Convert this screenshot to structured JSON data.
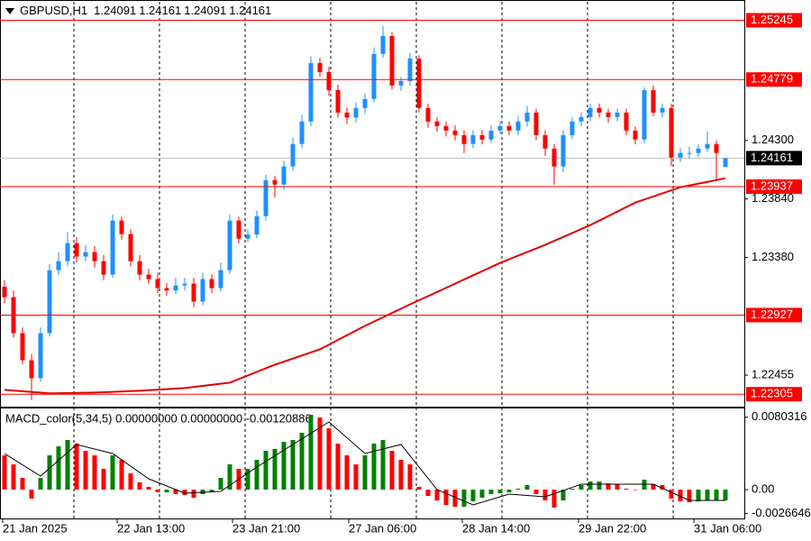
{
  "chart_data": {
    "type": "candlestick",
    "symbol": "GBPUSD,H1",
    "header_ohlc": [
      1.24091,
      1.24161,
      1.24091,
      1.24161
    ],
    "open": [
      1.2315,
      1.23068,
      1.22785,
      1.22572,
      1.22431,
      1.22785,
      1.2328,
      1.23351,
      1.23493,
      1.23387,
      1.23422,
      1.23351,
      1.23245,
      1.2367,
      1.23564,
      1.23351,
      1.23245,
      1.2321,
      1.23139,
      1.2312,
      1.2316,
      1.23174,
      1.23033,
      1.2321,
      1.23139,
      1.2328,
      1.2367,
      1.23528,
      1.2356,
      1.23705,
      1.23988,
      1.23953,
      1.24095,
      1.24272,
      1.24449,
      1.24909,
      1.24838,
      1.24696,
      1.24519,
      1.2448,
      1.24555,
      1.24626,
      1.2498,
      1.25121,
      1.24732,
      1.24767,
      1.24944,
      1.24555,
      1.24449,
      1.24413,
      1.24378,
      1.24342,
      1.24272,
      1.24342,
      1.24307,
      1.24378,
      1.24413,
      1.24378,
      1.24449,
      1.24519,
      1.24342,
      1.24236,
      1.24095,
      1.24342,
      1.24449,
      1.24484,
      1.24555,
      1.24519,
      1.24484,
      1.24519,
      1.24378,
      1.24307,
      1.24696,
      1.24519,
      1.24555,
      1.24165,
      1.24201,
      1.24201,
      1.24236,
      1.24272,
      1.24091
    ],
    "high": [
      1.232,
      1.2312,
      1.2283,
      1.2262,
      1.2283,
      1.2333,
      1.2342,
      1.2358,
      1.2354,
      1.2348,
      1.2347,
      1.234,
      1.2372,
      1.237,
      1.236,
      1.234,
      1.2329,
      1.2326,
      1.2318,
      1.2322,
      1.2322,
      1.2322,
      1.2326,
      1.2325,
      1.2334,
      1.2372,
      1.237,
      1.236,
      1.2375,
      1.2403,
      1.2402,
      1.2414,
      1.2432,
      1.245,
      1.2496,
      1.2495,
      1.2488,
      1.2474,
      1.2456,
      1.246,
      1.2467,
      1.2503,
      1.252,
      1.2515,
      1.248,
      1.2499,
      1.2497,
      1.2459,
      1.2448,
      1.2445,
      1.2442,
      1.2438,
      1.2438,
      1.2438,
      1.2442,
      1.2445,
      1.2445,
      1.2449,
      1.2457,
      1.2455,
      1.2438,
      1.2427,
      1.2438,
      1.2448,
      1.2452,
      1.2459,
      1.2459,
      1.2455,
      1.2455,
      1.2455,
      1.2441,
      1.2472,
      1.2473,
      1.2459,
      1.2459,
      1.2424,
      1.2425,
      1.2427,
      1.2437,
      1.243,
      1.24161
    ],
    "low": [
      1.2302,
      1.2275,
      1.2254,
      1.2226,
      1.224,
      1.2276,
      1.2324,
      1.2331,
      1.2334,
      1.2335,
      1.233,
      1.232,
      1.2322,
      1.2352,
      1.2331,
      1.232,
      1.2317,
      1.231,
      1.2308,
      1.2309,
      1.2312,
      1.2299,
      1.23,
      1.231,
      1.2311,
      1.2325,
      1.2349,
      1.235,
      1.2353,
      1.2367,
      1.2385,
      1.2391,
      1.2406,
      1.2424,
      1.2441,
      1.248,
      1.2465,
      1.2448,
      1.2443,
      1.2444,
      1.2451,
      1.246,
      1.2495,
      1.247,
      1.2469,
      1.2473,
      1.2452,
      1.244,
      1.2437,
      1.2433,
      1.243,
      1.242,
      1.2424,
      1.2427,
      1.2428,
      1.2435,
      1.2434,
      1.2434,
      1.2441,
      1.243,
      1.2418,
      1.2395,
      1.2405,
      1.2431,
      1.2441,
      1.2445,
      1.2448,
      1.2444,
      1.2445,
      1.2434,
      1.2427,
      1.2428,
      1.2449,
      1.2448,
      1.241,
      1.2413,
      1.2416,
      1.2417,
      1.2421,
      1.2398,
      1.24091
    ],
    "close": [
      1.23068,
      1.22785,
      1.22572,
      1.22431,
      1.22785,
      1.2328,
      1.23351,
      1.23493,
      1.23387,
      1.23422,
      1.23351,
      1.23245,
      1.2367,
      1.23564,
      1.23351,
      1.23245,
      1.2321,
      1.23139,
      1.2312,
      1.2316,
      1.23174,
      1.23033,
      1.2321,
      1.23139,
      1.2328,
      1.2367,
      1.23528,
      1.2356,
      1.23705,
      1.23988,
      1.23953,
      1.24095,
      1.24272,
      1.24449,
      1.24909,
      1.24838,
      1.24696,
      1.24519,
      1.2448,
      1.24555,
      1.24626,
      1.2498,
      1.25121,
      1.24732,
      1.24767,
      1.24944,
      1.24555,
      1.24449,
      1.24413,
      1.24378,
      1.24342,
      1.24272,
      1.24342,
      1.24307,
      1.24378,
      1.24413,
      1.24378,
      1.24449,
      1.24519,
      1.24342,
      1.24236,
      1.24095,
      1.24342,
      1.24449,
      1.24484,
      1.24555,
      1.24519,
      1.24484,
      1.24519,
      1.24378,
      1.24307,
      1.24696,
      1.24519,
      1.24555,
      1.24165,
      1.24201,
      1.24201,
      1.24236,
      1.24272,
      1.24201,
      1.24161
    ],
    "up_color": "#1e90ff",
    "down_color": "#ff0000",
    "xlim": [
      -0.5,
      80.5
    ],
    "xticks": [
      {
        "value": -0.2,
        "label": "21 Jan 2025"
      },
      {
        "value": 12.5,
        "label": "22 Jan 13:00"
      },
      {
        "value": 25.3,
        "label": "23 Jan 21:00"
      },
      {
        "value": 38.2,
        "label": "27 Jan 06:00"
      },
      {
        "value": 50.8,
        "label": "28 Jan 14:00"
      },
      {
        "value": 63.7,
        "label": "29 Jan 22:00"
      },
      {
        "value": 76.5,
        "label": "31 Jan 06:00"
      }
    ],
    "ylim": [
      1.222,
      1.2539
    ],
    "yticks": [
      {
        "value": 1.243,
        "label": "1.24300"
      },
      {
        "value": 1.2384,
        "label": "1.23840"
      },
      {
        "value": 1.2338,
        "label": "1.23380"
      },
      1.22455
    ],
    "levels": [
      1.25245,
      1.24779,
      1.23937,
      1.22927,
      1.22305
    ],
    "level_color": "#ff0000",
    "current_price": 1.24161,
    "moving_average": {
      "color": "#e00000",
      "x": [
        0,
        5,
        10,
        15,
        20,
        25,
        30,
        35,
        40,
        45,
        50,
        55,
        60,
        65,
        70,
        75,
        80
      ],
      "values": [
        1.22339,
        1.22311,
        1.22318,
        1.22332,
        1.22353,
        1.22396,
        1.22537,
        1.22657,
        1.22842,
        1.23011,
        1.23174,
        1.23337,
        1.23479,
        1.23634,
        1.23811,
        1.23932,
        1.24003
      ]
    },
    "macd": {
      "title": "MACD_color(5,34,5) 0.00000000 0.00000000 -0.00120886",
      "histogram": [
        0.0038,
        0.0028,
        0.0013,
        -0.001,
        0.0013,
        0.0038,
        0.0048,
        0.0055,
        0.0051,
        0.0043,
        0.0038,
        0.0023,
        0.0038,
        0.0033,
        0.0018,
        0.0008,
        0.0003,
        -0.0003,
        -0.0003,
        -0.0005,
        -0.0006,
        -0.0009,
        -0.0005,
        -0.0002,
        0.0013,
        0.0028,
        0.0023,
        0.0023,
        0.0033,
        0.0043,
        0.0045,
        0.0053,
        0.0055,
        0.0063,
        0.0083,
        0.008,
        0.0068,
        0.0051,
        0.0038,
        0.0028,
        0.0038,
        0.0051,
        0.0055,
        0.0043,
        0.0033,
        0.0028,
        0.0003,
        -0.0007,
        -0.0012,
        -0.0017,
        -0.0019,
        -0.0019,
        -0.0013,
        -0.0009,
        -0.0005,
        -0.0004,
        -0.0003,
        0.0001,
        0.0005,
        -0.0005,
        -0.0012,
        -0.002,
        -0.0012,
        0.0001,
        0.0005,
        0.0009,
        0.0009,
        0.0007,
        0.0006,
        0.0001,
        0,
        0.0011,
        0.0006,
        0.0005,
        -0.001,
        -0.0013,
        -0.0014,
        -0.0013,
        -0.0012,
        -0.0012,
        -0.0012
      ],
      "signal_x": [
        0,
        4,
        8,
        12,
        16,
        20,
        24,
        28,
        32,
        36,
        40,
        44,
        48,
        52,
        56,
        60,
        64,
        68,
        72,
        76,
        80
      ],
      "signal": [
        0.004,
        0.0015,
        0.005,
        0.004,
        0.0012,
        -0.0004,
        -0.0002,
        0.0025,
        0.005,
        0.0075,
        0.004,
        0.005,
        0,
        -0.0017,
        -0.0005,
        -0.0008,
        0.0006,
        0.0006,
        0.0006,
        -0.0012,
        -0.0012
      ],
      "rise_color": "#008000",
      "fall_color": "#ff0000",
      "ylim": [
        -0.0032,
        0.0088
      ],
      "yticks": [
        0.0080316,
        {
          "value": 0,
          "label": "0.00"
        },
        -0.0026646
      ]
    }
  }
}
